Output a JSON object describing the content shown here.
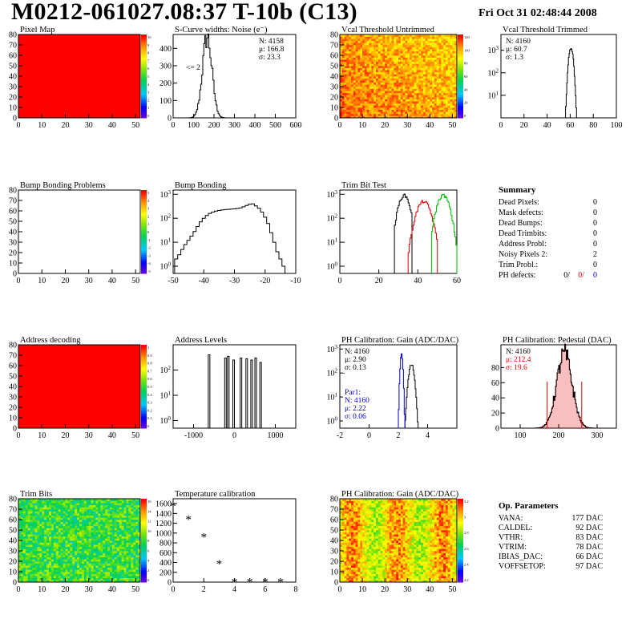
{
  "header": {
    "title": "M0212-061027.08:37 T-10b (C13)",
    "date": "Fri Oct 31 02:48:44 2008"
  },
  "colors": {
    "histo_black": "#000000",
    "histo_red": "#e00000",
    "histo_green": "#00bb00",
    "histo_blue": "#0000cc",
    "map_red": "#ff0000"
  },
  "palette_ticks": {
    "pixel_map": [
      "10",
      "9",
      "8",
      "7",
      "6",
      "5",
      "4",
      "3",
      "2",
      "1",
      "0"
    ],
    "vcal_untrimmed": [
      "120",
      "100",
      "80",
      "60",
      "40",
      "20",
      "0"
    ],
    "bump_problems": [
      "5",
      "4",
      "3",
      "2",
      "1",
      "0",
      "-1",
      "-2",
      "-3",
      "-4",
      "-5"
    ],
    "address_decoding": [
      "1",
      "0.9",
      "0.8",
      "0.7",
      "0.6",
      "0.5",
      "0.4",
      "0.3",
      "0.2",
      "0.1",
      "0"
    ],
    "trim_bits": [
      "16",
      "14",
      "12",
      "10",
      "8",
      "6",
      "4",
      "2",
      "0"
    ],
    "ph_gain_map": [
      "3.2",
      "3",
      "2.8",
      "2.6",
      "2.4",
      "2.2"
    ]
  },
  "summary": {
    "title": "Summary",
    "rows": [
      {
        "label": "Dead Pixels:",
        "value": "0"
      },
      {
        "label": "Mask defects:",
        "value": "0"
      },
      {
        "label": "Dead Bumps:",
        "value": "0"
      },
      {
        "label": "Dead Trimbits:",
        "value": "0"
      },
      {
        "label": "Address Probl:",
        "value": "0"
      },
      {
        "label": "Noisy Pixels 2:",
        "value": "2"
      },
      {
        "label": "Trim Probl.:",
        "value": "0"
      }
    ],
    "ph_defects": {
      "label": "PH defects:",
      "v1": "0/",
      "v2": "0/",
      "v3": "0"
    }
  },
  "op_parameters": {
    "title": "Op. Parameters",
    "rows": [
      {
        "label": "VANA:",
        "value": "177 DAC"
      },
      {
        "label": "CALDEL:",
        "value": "92 DAC"
      },
      {
        "label": "VTHR:",
        "value": "83 DAC"
      },
      {
        "label": "VTRIM:",
        "value": "78 DAC"
      },
      {
        "label": "IBIAS_DAC:",
        "value": "66 DAC"
      },
      {
        "label": "VOFFSETOP:",
        "value": "97 DAC"
      }
    ]
  },
  "chart_data": [
    {
      "id": "pixel_map",
      "type": "heatmap",
      "title": "Pixel Map",
      "xlim": [
        0,
        52
      ],
      "ylim": [
        0,
        80
      ],
      "xticks": [
        0,
        10,
        20,
        30,
        40,
        50
      ],
      "yticks": [
        0,
        10,
        20,
        30,
        40,
        50,
        60,
        70,
        80
      ],
      "z_range": [
        0,
        10
      ],
      "uniform_value": 10
    },
    {
      "id": "scurve_noise",
      "type": "histogram",
      "title": "S-Curve widths: Noise (e⁻)",
      "xlim": [
        0,
        600
      ],
      "ylim": [
        0,
        480
      ],
      "log_y": false,
      "xticks": [
        0,
        100,
        200,
        300,
        400,
        500,
        600
      ],
      "yticks": [
        0,
        100,
        200,
        300,
        400
      ],
      "stats": {
        "N": "4158",
        "mu": "166.8",
        "sigma": "23.3"
      },
      "annotation": "<= 2",
      "series": [
        {
          "name": "noise",
          "color": "black",
          "peak_x": 166.8,
          "sigma": 23.3,
          "peak_y": 465
        }
      ]
    },
    {
      "id": "vcal_untrimmed",
      "type": "heatmap",
      "title": "Vcal Threshold Untrimmed",
      "xlim": [
        0,
        52
      ],
      "ylim": [
        0,
        80
      ],
      "xticks": [
        0,
        10,
        20,
        30,
        40,
        50
      ],
      "yticks": [
        0,
        10,
        20,
        30,
        40,
        50,
        60,
        70,
        80
      ],
      "z_range": [
        0,
        130
      ]
    },
    {
      "id": "vcal_trimmed",
      "type": "histogram",
      "title": "Vcal Threshold Trimmed",
      "xlim": [
        0,
        100
      ],
      "log_y": true,
      "ylog_range": [
        1,
        5000
      ],
      "xticks": [
        0,
        20,
        40,
        60,
        80,
        100
      ],
      "yticks_log": [
        10,
        100,
        1000
      ],
      "stats": {
        "N": "4160",
        "mu": "60.7",
        "sigma": "1.3"
      },
      "series": [
        {
          "name": "threshold",
          "color": "black",
          "peak_x": 60.7,
          "sigma": 1.3,
          "peak_y": 1300
        }
      ]
    },
    {
      "id": "bump_problems",
      "type": "heatmap",
      "title": "Bump Bonding Problems",
      "xlim": [
        0,
        52
      ],
      "ylim": [
        0,
        80
      ],
      "xticks": [
        0,
        10,
        20,
        30,
        40,
        50
      ],
      "yticks": [
        0,
        10,
        20,
        30,
        40,
        50,
        60,
        70,
        80
      ],
      "z_range": [
        -5,
        5
      ],
      "empty": true
    },
    {
      "id": "bump_bonding",
      "type": "histogram",
      "title": "Bump Bonding",
      "xlim": [
        -50,
        -10
      ],
      "log_y": true,
      "ylog_range": [
        0.5,
        1500
      ],
      "xticks": [
        -50,
        -40,
        -30,
        -20,
        -10
      ],
      "yticks_log": [
        1,
        10,
        100,
        1000
      ],
      "series": [
        {
          "name": "bump",
          "color": "black",
          "x": [
            -49,
            -48,
            -47,
            -46,
            -45,
            -44,
            -43,
            -42,
            -41,
            -40,
            -39,
            -38,
            -37,
            -36,
            -35,
            -34,
            -33,
            -32,
            -31,
            -30,
            -29,
            -28,
            -27,
            -26,
            -25,
            -24,
            -23,
            -22,
            -21,
            -20,
            -19,
            -18,
            -17,
            -16,
            -15,
            -14
          ],
          "y": [
            2,
            3,
            5,
            8,
            12,
            18,
            28,
            45,
            70,
            100,
            130,
            160,
            180,
            200,
            210,
            220,
            230,
            235,
            240,
            245,
            255,
            270,
            300,
            340,
            380,
            400,
            330,
            260,
            180,
            110,
            60,
            25,
            10,
            4,
            2,
            1
          ]
        }
      ]
    },
    {
      "id": "trim_bit_test",
      "type": "histogram",
      "title": "Trim Bit Test",
      "xlim": [
        0,
        60
      ],
      "log_y": true,
      "ylog_range": [
        0.5,
        1500
      ],
      "xticks": [
        0,
        20,
        40,
        60
      ],
      "yticks_log": [
        1,
        10,
        100,
        1000
      ],
      "series": [
        {
          "name": "trim1",
          "color": "black",
          "peak_x": 33,
          "sigma": 2.0,
          "peak_y": 900,
          "range": [
            28,
            37
          ]
        },
        {
          "name": "trim2",
          "color": "red",
          "peak_x": 43,
          "sigma": 2.5,
          "peak_y": 500,
          "range": [
            35,
            50
          ]
        },
        {
          "name": "trim3",
          "color": "green",
          "peak_x": 53,
          "sigma": 2.2,
          "peak_y": 900,
          "range": [
            47,
            60
          ]
        }
      ]
    },
    {
      "id": "address_decoding",
      "type": "heatmap",
      "title": "Address decoding",
      "xlim": [
        0,
        52
      ],
      "ylim": [
        0,
        80
      ],
      "xticks": [
        0,
        10,
        20,
        30,
        40,
        50
      ],
      "yticks": [
        0,
        10,
        20,
        30,
        40,
        50,
        60,
        70,
        80
      ],
      "z_range": [
        0,
        1
      ],
      "uniform_value": 1
    },
    {
      "id": "address_levels",
      "type": "histogram",
      "title": "Address Levels",
      "xlim": [
        -1500,
        1500
      ],
      "log_y": true,
      "ylog_range": [
        0.5,
        1000
      ],
      "xticks": [
        -1000,
        0,
        1000
      ],
      "yticks_log": [
        1,
        10,
        100
      ],
      "series": [
        {
          "name": "levels",
          "color": "black",
          "spikes_x": [
            -620,
            -220,
            -150,
            -20,
            160,
            300,
            420,
            520,
            640
          ],
          "spikes_y": [
            400,
            300,
            350,
            250,
            300,
            280,
            250,
            300,
            200
          ]
        }
      ]
    },
    {
      "id": "ph_gain",
      "type": "histogram",
      "title": "PH Calibration: Gain (ADC/DAC)",
      "xlim": [
        -2,
        6
      ],
      "log_y": true,
      "ylog_range": [
        0.5,
        1500
      ],
      "xticks": [
        -2,
        0,
        2,
        4
      ],
      "yticks_log": [
        1,
        10,
        100,
        1000
      ],
      "stats": {
        "N": "4160",
        "mu": "2.90",
        "sigma": "0.13"
      },
      "stats2": {
        "label": "Par1:",
        "N": "4160",
        "mu": "2.22",
        "sigma": "0.06"
      },
      "series": [
        {
          "name": "gain",
          "color": "black",
          "peak_x": 2.9,
          "sigma": 0.13,
          "peak_y": 220
        },
        {
          "name": "par1",
          "color": "blue",
          "peak_x": 2.22,
          "sigma": 0.06,
          "peak_y": 600
        }
      ]
    },
    {
      "id": "ph_pedestal",
      "type": "histogram",
      "title": "PH Calibration: Pedestal (DAC)",
      "xlim": [
        50,
        350
      ],
      "ylim": [
        0,
        110
      ],
      "log_y": false,
      "xticks": [
        100,
        200,
        300
      ],
      "yticks": [
        0,
        20,
        40,
        60,
        80
      ],
      "stats": {
        "N": "4160",
        "mu": "212.4",
        "sigma": "19.6"
      },
      "series": [
        {
          "name": "pedestal",
          "color": "black",
          "fill": "red",
          "peak_x": 215,
          "sigma": 20,
          "peak_y": 98,
          "cut_lines": [
            170,
            260
          ]
        }
      ]
    },
    {
      "id": "trim_bits",
      "type": "heatmap",
      "title": "Trim Bits",
      "xlim": [
        0,
        52
      ],
      "ylim": [
        0,
        80
      ],
      "xticks": [
        0,
        10,
        20,
        30,
        40,
        50
      ],
      "yticks": [
        0,
        10,
        20,
        30,
        40,
        50,
        60,
        70,
        80
      ],
      "z_range": [
        0,
        16
      ]
    },
    {
      "id": "temperature_calibration",
      "type": "scatter",
      "title": "Temperature calibration",
      "xlim": [
        0,
        8
      ],
      "ylim": [
        0,
        1700
      ],
      "xticks": [
        0,
        2,
        4,
        6,
        8
      ],
      "yticks": [
        0,
        200,
        400,
        600,
        800,
        1000,
        1200,
        1400,
        1600
      ],
      "series": [
        {
          "name": "temperature",
          "color": "black",
          "x": [
            0,
            1,
            2,
            3,
            4,
            5,
            6,
            7
          ],
          "y": [
            1550,
            1280,
            920,
            380,
            10,
            10,
            10,
            10
          ]
        }
      ]
    },
    {
      "id": "ph_gain_map",
      "type": "heatmap",
      "title": "PH Calibration: Gain (ADC/DAC)",
      "xlim": [
        0,
        52
      ],
      "ylim": [
        0,
        80
      ],
      "xticks": [
        0,
        10,
        20,
        30,
        40,
        50
      ],
      "yticks": [
        0,
        10,
        20,
        30,
        40,
        50,
        60,
        70,
        80
      ],
      "z_range": [
        2.1,
        3.3
      ]
    }
  ]
}
